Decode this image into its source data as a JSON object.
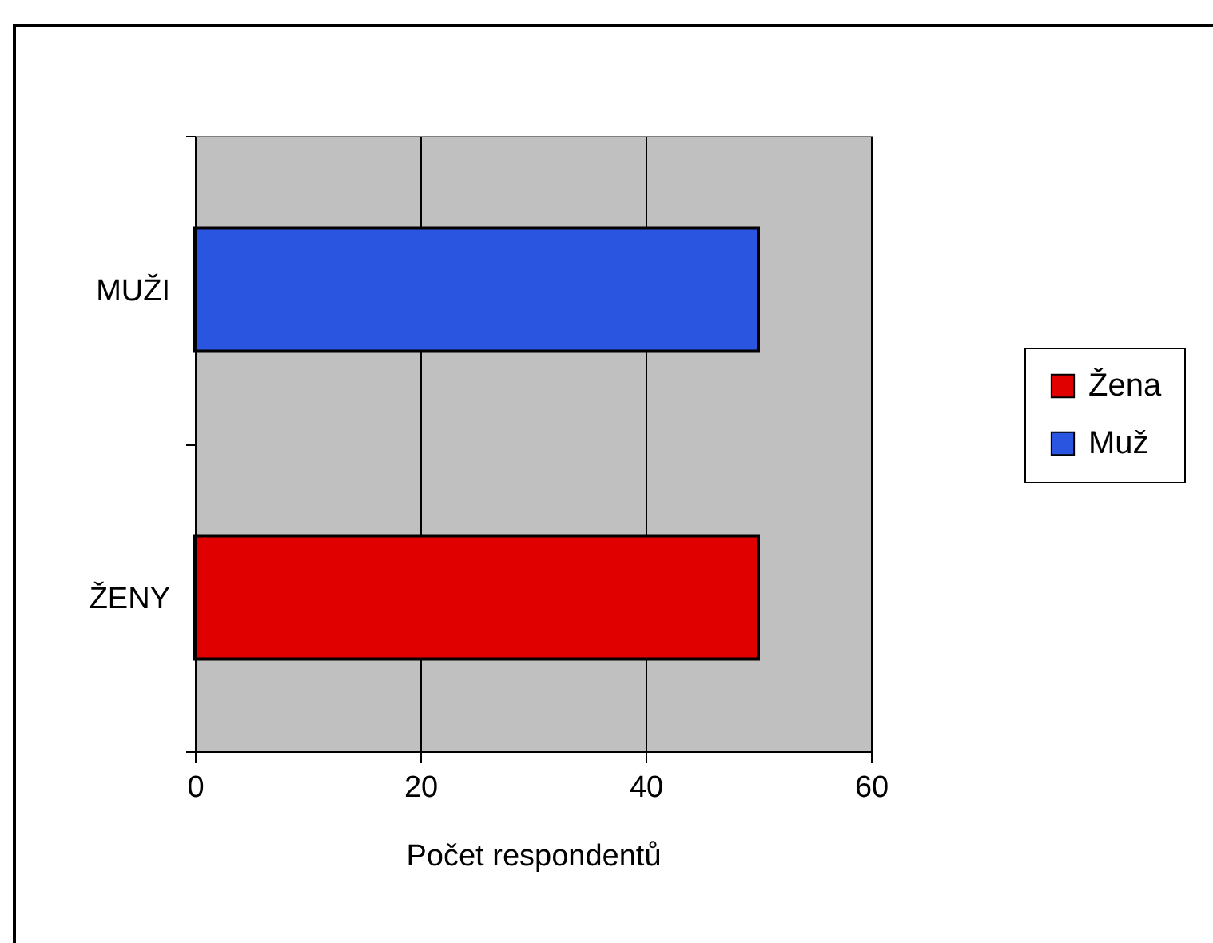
{
  "chart_data": {
    "type": "bar",
    "orientation": "horizontal",
    "categories": [
      "MUŽI",
      "ŽENY"
    ],
    "series": [
      {
        "name": "Žena",
        "color": "#e00000",
        "values": [
          null,
          50
        ]
      },
      {
        "name": "Muž",
        "color": "#2a55e0",
        "values": [
          50,
          null
        ]
      }
    ],
    "xlabel": "Počet respondentů",
    "xlim": [
      0,
      60
    ],
    "xticks": [
      0,
      20,
      40,
      60
    ],
    "grid": "x",
    "legend": "right"
  }
}
